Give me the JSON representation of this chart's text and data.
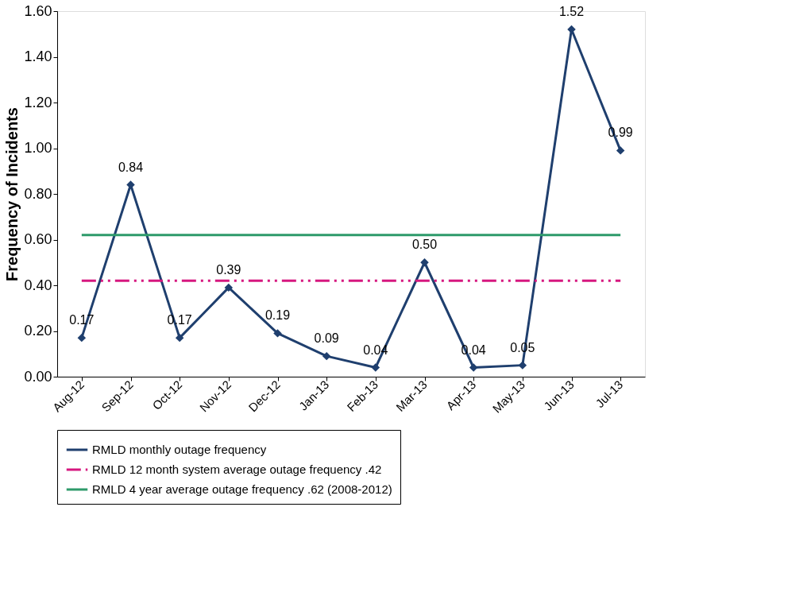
{
  "chart_data": {
    "type": "line",
    "ylabel": "Frequency of Incidents",
    "categories": [
      "Aug-12",
      "Sep-12",
      "Oct-12",
      "Nov-12",
      "Dec-12",
      "Jan-13",
      "Feb-13",
      "Mar-13",
      "Apr-13",
      "May-13",
      "Jun-13",
      "Jul-13"
    ],
    "series": [
      {
        "name": "RMLD monthly outage frequency",
        "color": "#1f3f6e",
        "marker": "diamond",
        "line_style": "solid",
        "values": [
          0.17,
          0.84,
          0.17,
          0.39,
          0.19,
          0.09,
          0.04,
          0.5,
          0.04,
          0.05,
          1.52,
          0.99
        ],
        "value_labels": [
          "0.17",
          "0.84",
          "0.17",
          "0.39",
          "0.19",
          "0.09",
          "0.04",
          "0.50",
          "0.04",
          "0.05",
          "1.52",
          "0.99"
        ]
      },
      {
        "name": "RMLD 12 month system average outage frequency .42",
        "color": "#d6177f",
        "marker": "none",
        "line_style": "dashed",
        "values": [
          0.42,
          0.42,
          0.42,
          0.42,
          0.42,
          0.42,
          0.42,
          0.42,
          0.42,
          0.42,
          0.42,
          0.42
        ]
      },
      {
        "name": "RMLD 4 year average outage frequency .62 (2008-2012)",
        "color": "#2e9a6a",
        "marker": "none",
        "line_style": "solid",
        "values": [
          0.62,
          0.62,
          0.62,
          0.62,
          0.62,
          0.62,
          0.62,
          0.62,
          0.62,
          0.62,
          0.62,
          0.62
        ]
      }
    ],
    "ylim": [
      0,
      1.6
    ],
    "yticks": [
      {
        "value": 0,
        "label": "0.00"
      },
      {
        "value": 0.2,
        "label": "0.20"
      },
      {
        "value": 0.4,
        "label": "0.40"
      },
      {
        "value": 0.6,
        "label": "0.60"
      },
      {
        "value": 0.8,
        "label": "0.80"
      },
      {
        "value": 1.0,
        "label": "1.00"
      },
      {
        "value": 1.2,
        "label": "1.20"
      },
      {
        "value": 1.4,
        "label": "1.40"
      },
      {
        "value": 1.6,
        "label": "1.60"
      }
    ],
    "grid": false,
    "legend": "bottom"
  }
}
